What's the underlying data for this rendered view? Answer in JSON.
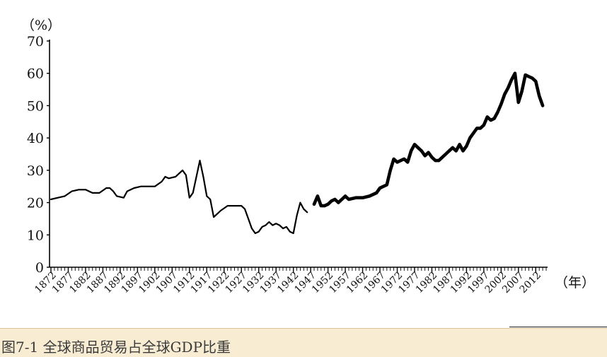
{
  "caption": "图7-1 全球商品贸易占全球GDP比重",
  "chart_data": {
    "type": "line",
    "title": "",
    "ylabel": "（%）",
    "xlabel": "（年）",
    "ylim": [
      0,
      70
    ],
    "yticks": [
      0,
      10,
      20,
      30,
      40,
      50,
      60,
      70
    ],
    "xlim": [
      1872,
      2015
    ],
    "xticks": [
      "1872",
      "1877",
      "1882",
      "1887",
      "1892",
      "1897",
      "1902",
      "1907",
      "1912",
      "1917",
      "1922",
      "1927",
      "1932",
      "1937",
      "1942",
      "1947",
      "1952",
      "1957",
      "1962",
      "1967",
      "1972",
      "1977",
      "1982",
      "1987",
      "1992",
      "1997",
      "2002",
      "2007",
      "2012"
    ],
    "grid": false,
    "line_color": "#000000",
    "series": [
      {
        "points": [
          [
            1872,
            21
          ],
          [
            1874,
            21.5
          ],
          [
            1876,
            22
          ],
          [
            1878,
            23.5
          ],
          [
            1880,
            24
          ],
          [
            1882,
            24
          ],
          [
            1884,
            23
          ],
          [
            1886,
            23
          ],
          [
            1888,
            24.5
          ],
          [
            1889,
            24.5
          ],
          [
            1890,
            23.5
          ],
          [
            1891,
            22
          ],
          [
            1893,
            21.5
          ],
          [
            1894,
            23.5
          ],
          [
            1896,
            24.5
          ],
          [
            1898,
            25
          ],
          [
            1900,
            25
          ],
          [
            1902,
            25
          ],
          [
            1904,
            26.5
          ],
          [
            1905,
            28
          ],
          [
            1906,
            27.5
          ],
          [
            1908,
            28
          ],
          [
            1910,
            30
          ],
          [
            1911,
            28.5
          ],
          [
            1912,
            21.5
          ],
          [
            1913,
            23
          ],
          [
            1914,
            28
          ],
          [
            1915,
            33
          ],
          [
            1916,
            28
          ],
          [
            1917,
            22
          ],
          [
            1918,
            21
          ],
          [
            1919,
            15.5
          ],
          [
            1920,
            16.5
          ],
          [
            1921,
            17.5
          ],
          [
            1923,
            19
          ],
          [
            1925,
            19
          ],
          [
            1927,
            19
          ],
          [
            1928,
            18
          ],
          [
            1929,
            15
          ],
          [
            1930,
            12
          ],
          [
            1931,
            10.5
          ],
          [
            1932,
            11
          ],
          [
            1933,
            12.5
          ],
          [
            1934,
            13
          ],
          [
            1935,
            14
          ],
          [
            1936,
            13
          ],
          [
            1937,
            13.5
          ],
          [
            1938,
            13
          ],
          [
            1939,
            12
          ],
          [
            1940,
            12.5
          ],
          [
            1941,
            11
          ],
          [
            1942,
            10.5
          ],
          [
            1943,
            16
          ],
          [
            1944,
            20
          ],
          [
            1945,
            18
          ],
          [
            1946,
            17
          ]
        ]
      },
      {
        "points": [
          [
            1948,
            19.5
          ],
          [
            1949,
            22
          ],
          [
            1950,
            19
          ],
          [
            1951,
            19
          ],
          [
            1952,
            19.5
          ],
          [
            1953,
            20.5
          ],
          [
            1954,
            21
          ],
          [
            1955,
            20
          ],
          [
            1956,
            21
          ],
          [
            1957,
            22
          ],
          [
            1958,
            21
          ],
          [
            1960,
            21.5
          ],
          [
            1962,
            21.5
          ],
          [
            1964,
            22
          ],
          [
            1966,
            23
          ],
          [
            1967,
            24.5
          ],
          [
            1968,
            25
          ],
          [
            1969,
            25.5
          ],
          [
            1970,
            30
          ],
          [
            1971,
            33.5
          ],
          [
            1972,
            32.5
          ],
          [
            1973,
            33
          ],
          [
            1974,
            33.5
          ],
          [
            1975,
            32.5
          ],
          [
            1976,
            36
          ],
          [
            1977,
            38
          ],
          [
            1978,
            37
          ],
          [
            1979,
            36
          ],
          [
            1980,
            34.5
          ],
          [
            1981,
            35.5
          ],
          [
            1982,
            34
          ],
          [
            1983,
            33
          ],
          [
            1984,
            33
          ],
          [
            1985,
            34
          ],
          [
            1986,
            35
          ],
          [
            1987,
            36
          ],
          [
            1988,
            37
          ],
          [
            1989,
            36
          ],
          [
            1990,
            38
          ],
          [
            1991,
            36
          ],
          [
            1992,
            37.5
          ],
          [
            1993,
            40
          ],
          [
            1994,
            41.5
          ],
          [
            1995,
            43
          ],
          [
            1996,
            43
          ],
          [
            1997,
            44
          ],
          [
            1998,
            46.5
          ],
          [
            1999,
            45.5
          ],
          [
            2000,
            46
          ],
          [
            2001,
            48
          ],
          [
            2002,
            50.5
          ],
          [
            2003,
            53.5
          ],
          [
            2004,
            55.5
          ],
          [
            2005,
            58
          ],
          [
            2006,
            60
          ],
          [
            2007,
            51
          ],
          [
            2008,
            54.5
          ],
          [
            2009,
            59.5
          ],
          [
            2010,
            59
          ],
          [
            2011,
            58.5
          ],
          [
            2012,
            57.5
          ],
          [
            2013,
            53
          ],
          [
            2014,
            50
          ]
        ]
      }
    ]
  }
}
